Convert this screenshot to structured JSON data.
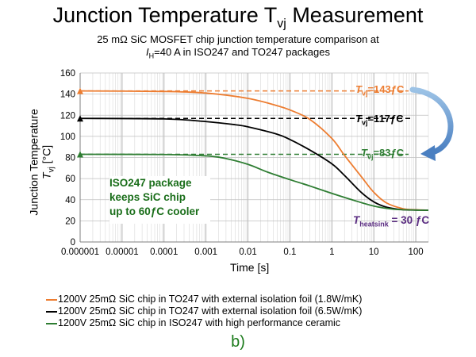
{
  "title_main": "Junction Temperature T",
  "title_sub": "vj",
  "title_tail": " Measurement",
  "subtitle_line1": "25 mΩ SiC MOSFET chip junction temperature comparison at",
  "subtitle_I": "I",
  "subtitle_H": "H",
  "subtitle_line2_rest": "=40 A in ISO247 and TO247 packages",
  "ylabel_line1": "Junction Temperature",
  "ylabel_T": "T",
  "ylabel_vj": "vj",
  "ylabel_unit": " [°C]",
  "xlabel": "Time [s]",
  "annotations": {
    "t143_T": "T",
    "t143_sub": "vj",
    "t143_val": "=143ƒC",
    "t117_T": "T",
    "t117_sub": "vj",
    "t117_val": "=117ƒC",
    "t83_T": "T",
    "t83_sub": "vj",
    "t83_val": "=83ƒC",
    "heatsink_T": "T",
    "heatsink_sub": "heatsink",
    "heatsink_val": " = 30 ƒC"
  },
  "cooler_box": [
    "ISO247 package",
    "keeps SiC chip",
    "up to 60ƒC cooler"
  ],
  "legend": [
    {
      "text": "1200V 25mΩ SiC chip in TO247 with external isolation foil (1.8W/mK)",
      "color": "#ed7d31"
    },
    {
      "text": "1200V 25mΩ SiC chip in TO247 with external isolation foil (6.5W/mK)",
      "color": "#000000"
    },
    {
      "text": "1200V 25mΩ SiC chip in ISO247 with high performance ceramic",
      "color": "#2e7d32"
    }
  ],
  "fig_label": "b)",
  "colors": {
    "to247_18": "#ed7d31",
    "to247_65": "#000000",
    "iso247": "#2e7d32",
    "heatsink_text": "#5b2d82",
    "arrow": "#4a7fc1"
  },
  "chart_data": {
    "type": "line",
    "x_scale": "log",
    "xlim": [
      1e-06,
      200
    ],
    "ylim": [
      0,
      160
    ],
    "x_ticks": [
      1e-06,
      1e-05,
      0.0001,
      0.001,
      0.01,
      0.1,
      1,
      10,
      100
    ],
    "x_tick_labels": [
      "0.000001",
      "0.00001",
      "0.0001",
      "0.001",
      "0.01",
      "0.1",
      "1",
      "10",
      "100"
    ],
    "y_ticks": [
      0,
      20,
      40,
      60,
      80,
      100,
      120,
      140,
      160
    ],
    "grid": true,
    "series": [
      {
        "key": "to247_18",
        "x": [
          1e-06,
          0.0001,
          0.001,
          0.01,
          0.05,
          0.1,
          0.3,
          1,
          2,
          5,
          10,
          20,
          50,
          100,
          200
        ],
        "y": [
          143,
          142.5,
          141,
          136,
          129,
          125,
          116,
          98,
          82,
          62,
          47,
          37,
          31.5,
          30.5,
          30
        ]
      },
      {
        "key": "to247_65",
        "x": [
          1e-06,
          0.0001,
          0.001,
          0.005,
          0.01,
          0.05,
          0.1,
          0.3,
          1,
          2,
          5,
          10,
          20,
          50,
          100,
          200
        ],
        "y": [
          117,
          116.5,
          114,
          111,
          109,
          102,
          97,
          87,
          74,
          63,
          47,
          38,
          33,
          30.5,
          30.2,
          30
        ]
      },
      {
        "key": "iso247",
        "x": [
          1e-06,
          0.0001,
          0.001,
          0.003,
          0.01,
          0.03,
          0.1,
          0.3,
          1,
          3,
          10,
          30,
          100,
          200
        ],
        "y": [
          83,
          82.8,
          81.5,
          79,
          73.5,
          66,
          59,
          53,
          46,
          40,
          34,
          31,
          30.2,
          30
        ]
      }
    ],
    "markers": [
      {
        "key": "to247_18",
        "y": 143
      },
      {
        "key": "to247_65",
        "y": 117
      },
      {
        "key": "iso247",
        "y": 83
      }
    ]
  }
}
